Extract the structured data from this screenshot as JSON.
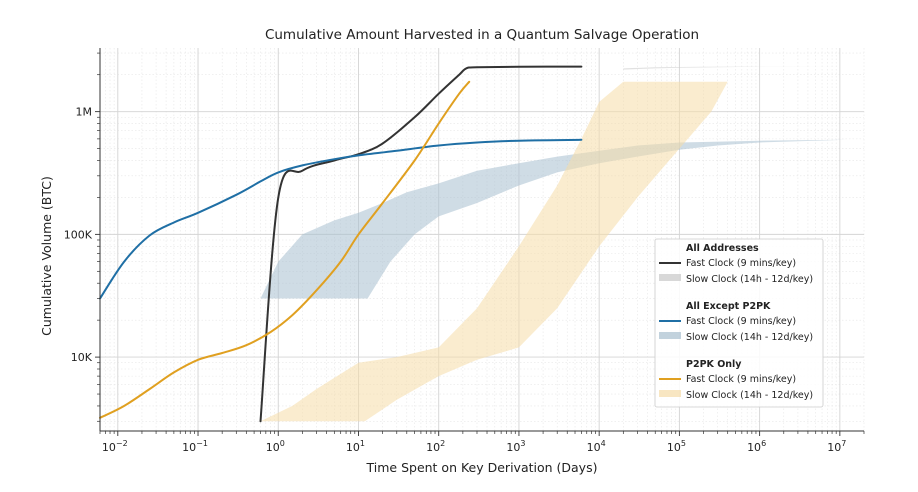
{
  "chart_data": {
    "type": "line",
    "title": "Cumulative Amount Harvested in a Quantum Salvage Operation",
    "xlabel": "Time Spent on Key Derivation (Days)",
    "ylabel": "Cumulative Volume (BTC)",
    "x_scale": "log",
    "y_scale": "log",
    "xlim": [
      0.006,
      20000000
    ],
    "ylim": [
      2500,
      3300000
    ],
    "x_ticks": [
      {
        "value": 0.01,
        "base": "10",
        "exp": "−2"
      },
      {
        "value": 0.1,
        "base": "10",
        "exp": "−1"
      },
      {
        "value": 1,
        "base": "10",
        "exp": "0"
      },
      {
        "value": 10,
        "base": "10",
        "exp": "1"
      },
      {
        "value": 100,
        "base": "10",
        "exp": "2"
      },
      {
        "value": 1000,
        "base": "10",
        "exp": "3"
      },
      {
        "value": 10000,
        "base": "10",
        "exp": "4"
      },
      {
        "value": 100000,
        "base": "10",
        "exp": "5"
      },
      {
        "value": 1000000,
        "base": "10",
        "exp": "6"
      },
      {
        "value": 10000000,
        "base": "10",
        "exp": "7"
      }
    ],
    "y_ticks": [
      {
        "value": 10000,
        "label": "10K"
      },
      {
        "value": 100000,
        "label": "100K"
      },
      {
        "value": 1000000,
        "label": "1M"
      }
    ],
    "grid": true,
    "legend_position": "right",
    "legend_groups": [
      {
        "title": "All Addresses",
        "line_label": "Fast Clock (9 mins/key)",
        "band_label": "Slow Clock (14h - 12d/key)"
      },
      {
        "title": "All Except P2PK",
        "line_label": "Fast Clock (9 mins/key)",
        "band_label": "Slow Clock (14h - 12d/key)"
      },
      {
        "title": "P2PK Only",
        "line_label": "Fast Clock (9 mins/key)",
        "band_label": "Slow Clock (14h - 12d/key)"
      }
    ],
    "series": [
      {
        "group": "All Addresses",
        "kind": "line",
        "color": "#333333",
        "points": [
          [
            0.6,
            3000
          ],
          [
            1,
            200000
          ],
          [
            2,
            330000
          ],
          [
            5,
            400000
          ],
          [
            10,
            450000
          ],
          [
            20,
            550000
          ],
          [
            50,
            900000
          ],
          [
            100,
            1400000
          ],
          [
            180,
            2000000
          ],
          [
            220,
            2250000
          ],
          [
            300,
            2300000
          ],
          [
            1000,
            2320000
          ],
          [
            6000,
            2330000
          ]
        ]
      },
      {
        "group": "All Except P2PK",
        "kind": "line",
        "color": "#1f6fa5",
        "points": [
          [
            0.006,
            30000
          ],
          [
            0.012,
            60000
          ],
          [
            0.025,
            98000
          ],
          [
            0.05,
            125000
          ],
          [
            0.1,
            150000
          ],
          [
            0.3,
            210000
          ],
          [
            0.6,
            270000
          ],
          [
            1,
            320000
          ],
          [
            2,
            365000
          ],
          [
            5,
            410000
          ],
          [
            10,
            440000
          ],
          [
            30,
            480000
          ],
          [
            100,
            530000
          ],
          [
            300,
            560000
          ],
          [
            1000,
            580000
          ],
          [
            6000,
            590000
          ]
        ]
      },
      {
        "group": "P2PK Only",
        "kind": "line",
        "color": "#e0a020",
        "points": [
          [
            0.006,
            3200
          ],
          [
            0.012,
            4000
          ],
          [
            0.025,
            5500
          ],
          [
            0.05,
            7500
          ],
          [
            0.1,
            9500
          ],
          [
            0.2,
            10800
          ],
          [
            0.4,
            12500
          ],
          [
            0.8,
            16000
          ],
          [
            1.5,
            22000
          ],
          [
            3,
            35000
          ],
          [
            6,
            60000
          ],
          [
            10,
            100000
          ],
          [
            20,
            180000
          ],
          [
            50,
            400000
          ],
          [
            100,
            800000
          ],
          [
            180,
            1400000
          ],
          [
            240,
            1750000
          ]
        ]
      },
      {
        "group": "All Addresses",
        "kind": "band",
        "color": "#c8c8c8",
        "lower": [
          [
            20000,
            2200000
          ],
          [
            50000,
            2250000
          ],
          [
            100000,
            2280000
          ],
          [
            300000,
            2300000
          ],
          [
            1000000,
            2320000
          ],
          [
            12000000,
            2330000
          ]
        ],
        "upper": [
          [
            20000,
            2250000
          ],
          [
            50000,
            2300000
          ],
          [
            200000,
            2320000
          ],
          [
            1000000,
            2330000
          ],
          [
            12000000,
            2330000
          ]
        ]
      },
      {
        "group": "All Except P2PK",
        "kind": "band",
        "color": "#a8bfcf",
        "lower": [
          [
            0.6,
            30000
          ],
          [
            13,
            30000
          ],
          [
            25,
            60000
          ],
          [
            50,
            100000
          ],
          [
            100,
            140000
          ],
          [
            300,
            180000
          ],
          [
            1000,
            250000
          ],
          [
            3000,
            320000
          ],
          [
            10000,
            380000
          ],
          [
            30000,
            430000
          ],
          [
            100000,
            490000
          ],
          [
            300000,
            530000
          ],
          [
            1000000,
            560000
          ],
          [
            12000000,
            590000
          ]
        ],
        "upper": [
          [
            0.6,
            30000
          ],
          [
            1,
            60000
          ],
          [
            2,
            100000
          ],
          [
            5,
            130000
          ],
          [
            10,
            150000
          ],
          [
            20,
            180000
          ],
          [
            40,
            220000
          ],
          [
            100,
            260000
          ],
          [
            300,
            330000
          ],
          [
            1000,
            380000
          ],
          [
            3000,
            430000
          ],
          [
            10000,
            480000
          ],
          [
            30000,
            530000
          ],
          [
            100000,
            560000
          ],
          [
            1000000,
            580000
          ],
          [
            12000000,
            590000
          ]
        ]
      },
      {
        "group": "P2PK Only",
        "kind": "band",
        "color": "#f5dca8",
        "lower": [
          [
            0.6,
            3000
          ],
          [
            12,
            3000
          ],
          [
            30,
            4500
          ],
          [
            100,
            7000
          ],
          [
            300,
            9500
          ],
          [
            1000,
            12000
          ],
          [
            3000,
            25000
          ],
          [
            10000,
            80000
          ],
          [
            30000,
            200000
          ],
          [
            100000,
            500000
          ],
          [
            250000,
            1000000
          ],
          [
            400000,
            1750000
          ]
        ],
        "upper": [
          [
            0.6,
            3000
          ],
          [
            1.5,
            4000
          ],
          [
            3,
            5500
          ],
          [
            10,
            9000
          ],
          [
            30,
            10000
          ],
          [
            100,
            12000
          ],
          [
            300,
            25000
          ],
          [
            1000,
            80000
          ],
          [
            3000,
            250000
          ],
          [
            6000,
            600000
          ],
          [
            10000,
            1200000
          ],
          [
            20000,
            1750000
          ],
          [
            400000,
            1750000
          ]
        ]
      }
    ]
  }
}
